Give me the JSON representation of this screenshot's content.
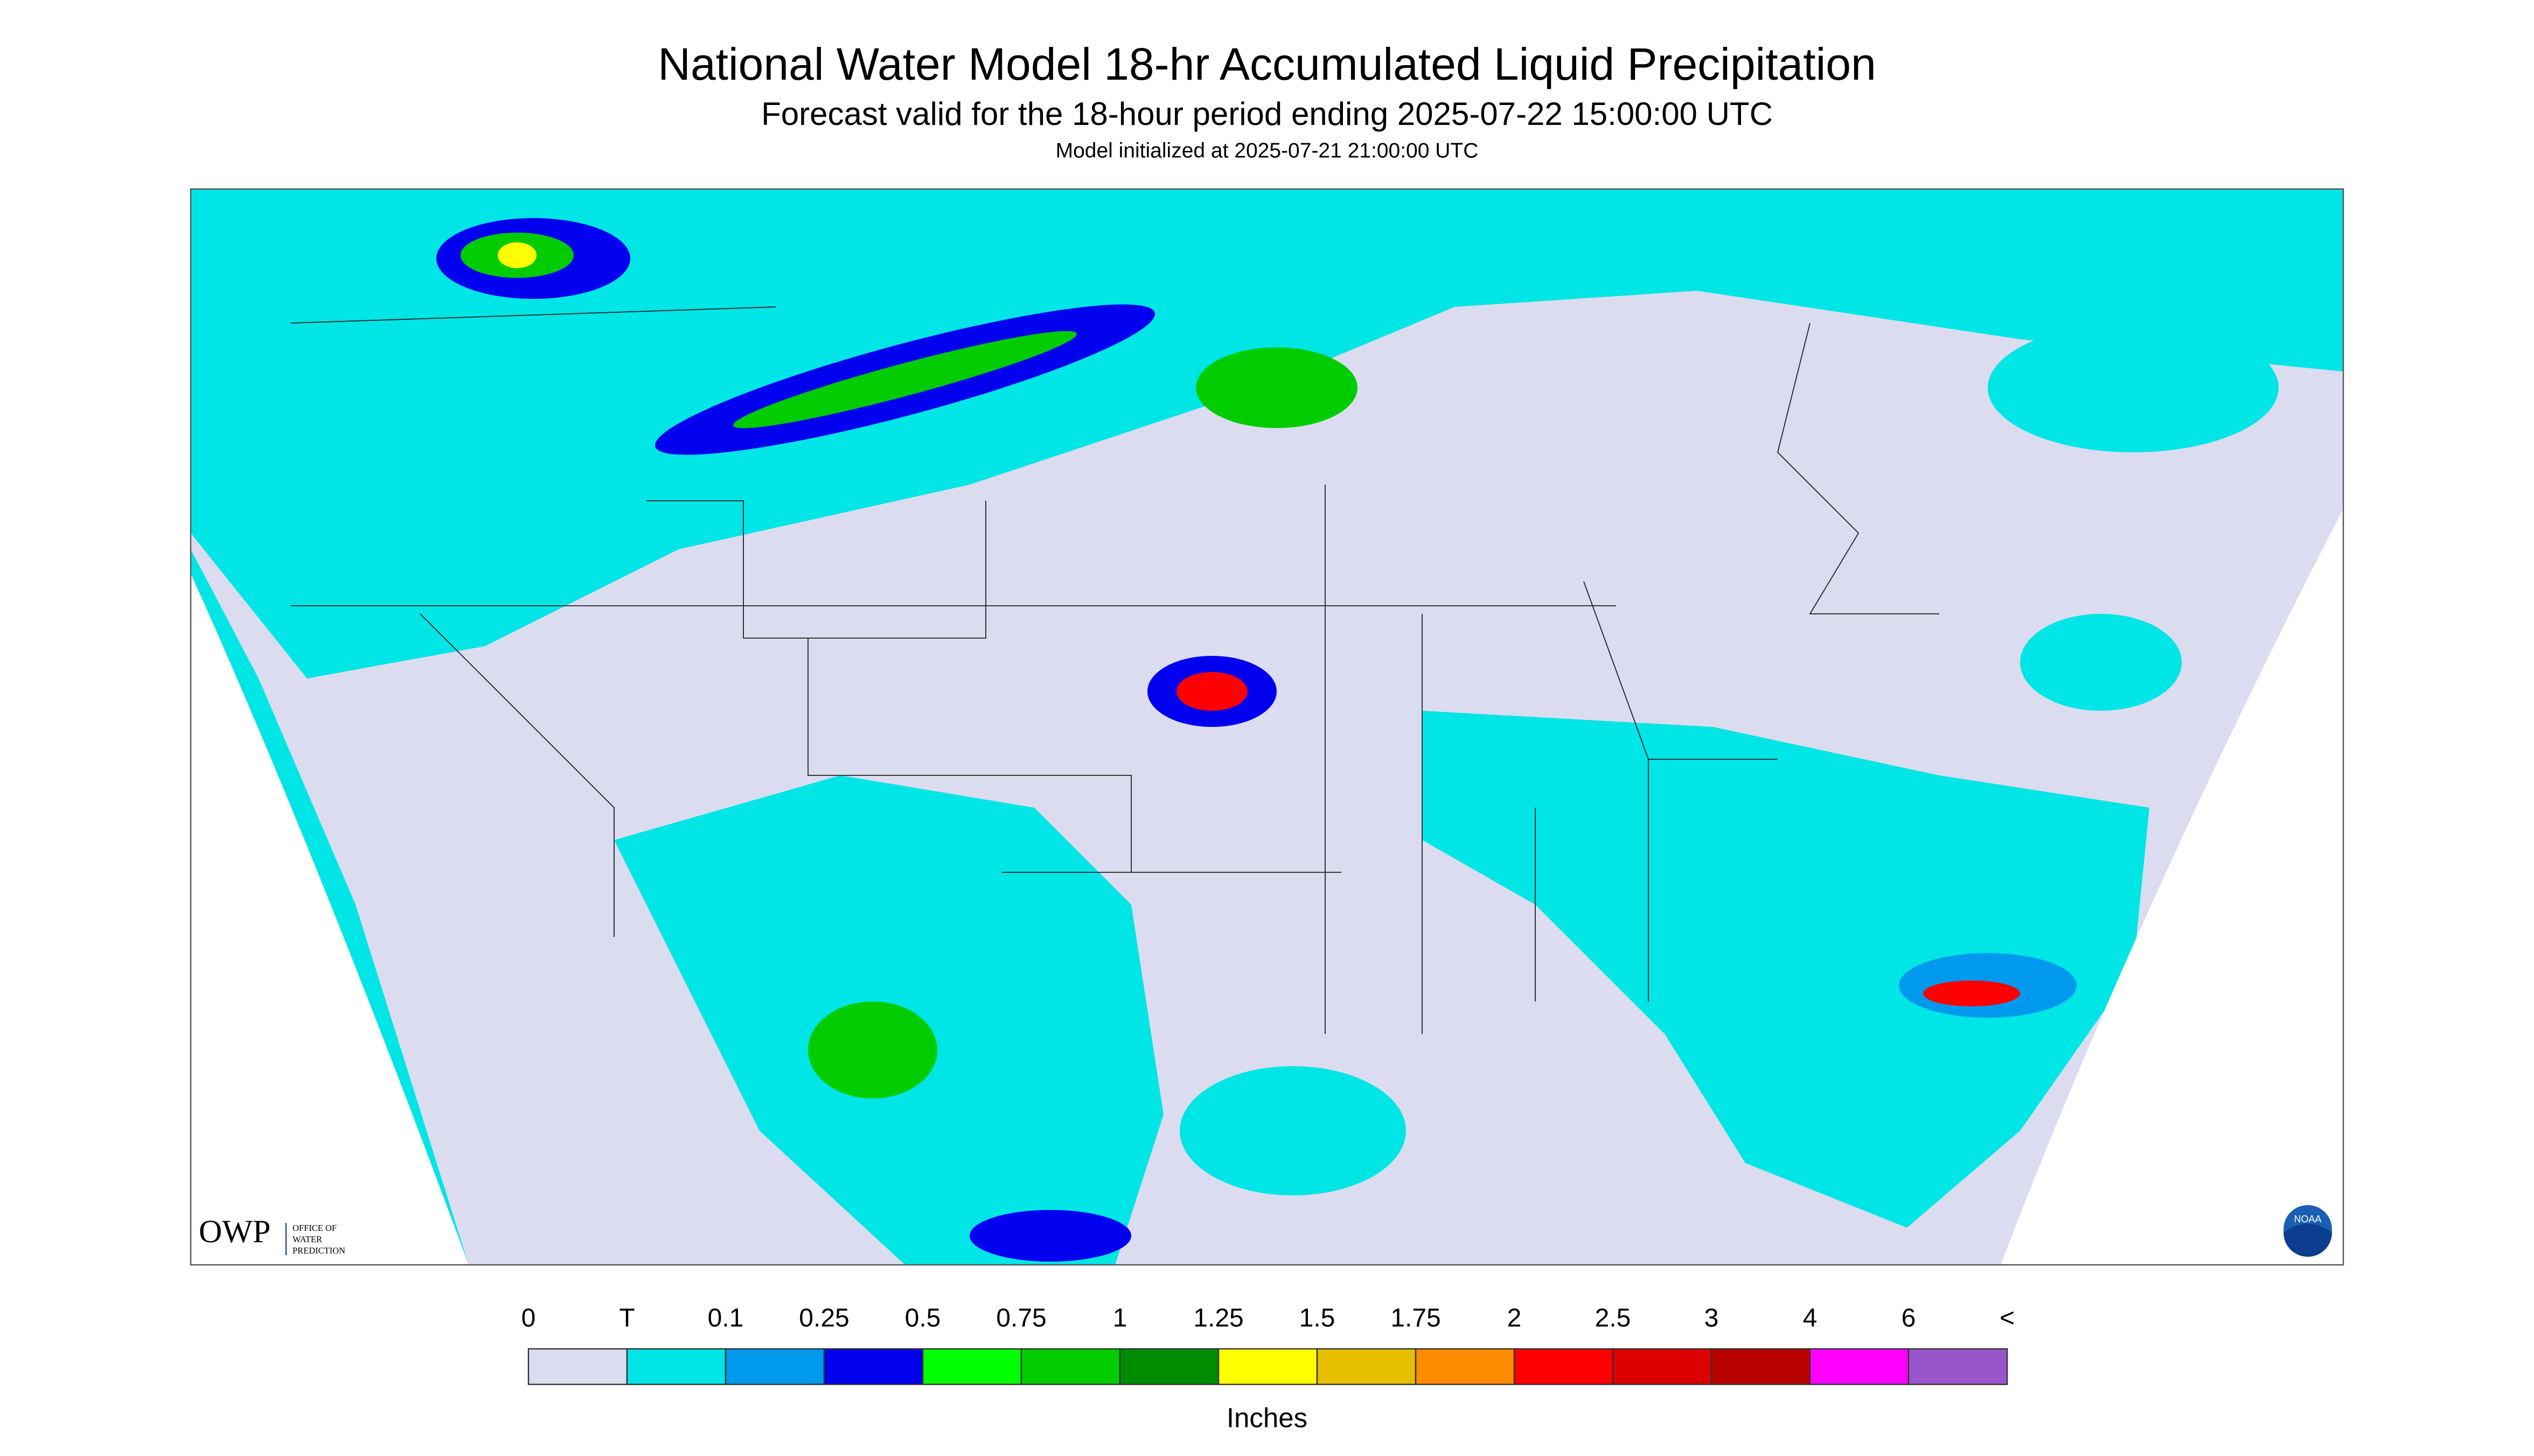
{
  "header": {
    "title": "National Water Model 18-hr Accumulated Liquid Precipitation",
    "subtitle": "Forecast valid for the 18-hour period ending 2025-07-22 15:00:00 UTC",
    "note": "Model initialized at 2025-07-21 21:00:00 UTC"
  },
  "map": {
    "background": "#dcdcf0",
    "light_rain": "#00e5e5"
  },
  "legend": {
    "labels": [
      "0",
      "T",
      "0.1",
      "0.25",
      "0.5",
      "0.75",
      "1",
      "1.25",
      "1.5",
      "1.75",
      "2",
      "2.5",
      "3",
      "4",
      "6",
      "<"
    ],
    "colors": [
      "#dcdcf0",
      "#00e5e5",
      "#0099ee",
      "#0000ee",
      "#00ff00",
      "#00cc00",
      "#008c00",
      "#ffff00",
      "#e6c000",
      "#ff8c00",
      "#ff0000",
      "#dd0000",
      "#b80000",
      "#ff00ff",
      "#9955cc"
    ],
    "unit": "Inches"
  },
  "logo": {
    "abbr": "OWP",
    "lines": [
      "OFFICE OF",
      "WATER",
      "PREDICTION"
    ]
  },
  "badge": "NOAA"
}
